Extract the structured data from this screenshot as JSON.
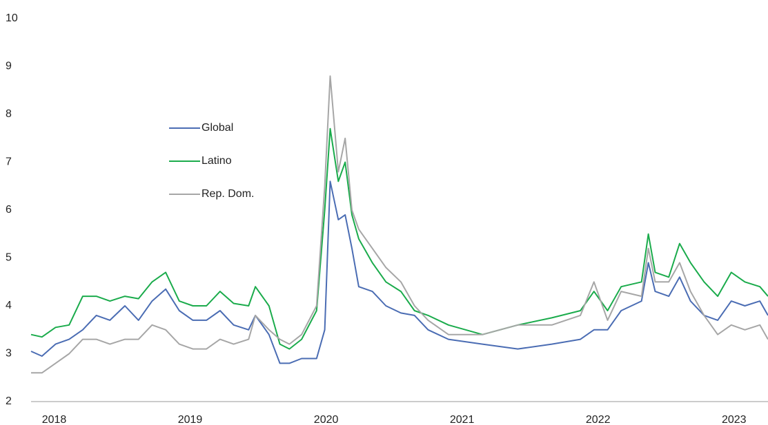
{
  "chart_data": {
    "type": "line",
    "x": [
      2018.0,
      2018.08,
      2018.18,
      2018.28,
      2018.38,
      2018.48,
      2018.58,
      2018.69,
      2018.79,
      2018.89,
      2018.99,
      2019.09,
      2019.19,
      2019.29,
      2019.39,
      2019.49,
      2019.6,
      2019.65,
      2019.75,
      2019.83,
      2019.9,
      2019.99,
      2020.1,
      2020.16,
      2020.2,
      2020.26,
      2020.31,
      2020.36,
      2020.41,
      2020.51,
      2020.61,
      2020.72,
      2020.82,
      2020.92,
      2021.07,
      2021.32,
      2021.58,
      2021.83,
      2022.04,
      2022.14,
      2022.24,
      2022.34,
      2022.49,
      2022.54,
      2022.59,
      2022.69,
      2022.77,
      2022.85,
      2022.95,
      2023.05,
      2023.15,
      2023.25,
      2023.36,
      2023.42
    ],
    "series": [
      {
        "name": "Global",
        "color": "#4a6cb3",
        "values": [
          3.05,
          2.95,
          3.2,
          3.3,
          3.5,
          3.8,
          3.7,
          4.0,
          3.7,
          4.1,
          4.35,
          3.9,
          3.7,
          3.7,
          3.9,
          3.6,
          3.5,
          3.8,
          3.4,
          2.8,
          2.8,
          2.9,
          2.9,
          3.5,
          6.6,
          5.8,
          5.9,
          5.2,
          4.4,
          4.3,
          4.0,
          3.85,
          3.8,
          3.5,
          3.3,
          3.2,
          3.1,
          3.2,
          3.3,
          3.5,
          3.5,
          3.9,
          4.1,
          4.9,
          4.3,
          4.2,
          4.6,
          4.1,
          3.8,
          3.7,
          4.1,
          4.0,
          4.1,
          3.8
        ]
      },
      {
        "name": "Latino",
        "color": "#1aab4b",
        "values": [
          3.4,
          3.35,
          3.55,
          3.6,
          4.2,
          4.2,
          4.1,
          4.2,
          4.15,
          4.5,
          4.7,
          4.1,
          4.0,
          4.0,
          4.3,
          4.05,
          4.0,
          4.4,
          4.0,
          3.2,
          3.1,
          3.3,
          3.9,
          6.0,
          7.7,
          6.6,
          7.0,
          5.9,
          5.4,
          4.9,
          4.5,
          4.3,
          3.9,
          3.8,
          3.6,
          3.4,
          3.6,
          3.75,
          3.9,
          4.3,
          3.9,
          4.4,
          4.5,
          5.5,
          4.7,
          4.6,
          5.3,
          4.9,
          4.5,
          4.2,
          4.7,
          4.5,
          4.4,
          4.2
        ]
      },
      {
        "name": "Rep. Dom.",
        "color": "#a6a6a6",
        "values": [
          2.6,
          2.6,
          2.8,
          3.0,
          3.3,
          3.3,
          3.2,
          3.3,
          3.3,
          3.6,
          3.5,
          3.2,
          3.1,
          3.1,
          3.3,
          3.2,
          3.3,
          3.8,
          3.5,
          3.3,
          3.2,
          3.4,
          4.0,
          6.5,
          8.8,
          6.8,
          7.5,
          6.0,
          5.6,
          5.2,
          4.8,
          4.5,
          4.0,
          3.7,
          3.4,
          3.4,
          3.6,
          3.6,
          3.8,
          4.5,
          3.7,
          4.3,
          4.2,
          5.2,
          4.5,
          4.5,
          4.9,
          4.3,
          3.8,
          3.4,
          3.6,
          3.5,
          3.6,
          3.3
        ]
      }
    ],
    "xlim": [
      2018.0,
      2023.42
    ],
    "xticks": [
      {
        "value": 2018.17,
        "label": "2018"
      },
      {
        "value": 2019.17,
        "label": "2019"
      },
      {
        "value": 2020.17,
        "label": "2020"
      },
      {
        "value": 2021.17,
        "label": "2021"
      },
      {
        "value": 2022.17,
        "label": "2022"
      },
      {
        "value": 2023.17,
        "label": "2023"
      }
    ],
    "ylim": [
      2,
      10
    ],
    "yticks": [
      2,
      3,
      4,
      5,
      6,
      7,
      8,
      9,
      10
    ],
    "grid": false,
    "legend": "upper left"
  }
}
